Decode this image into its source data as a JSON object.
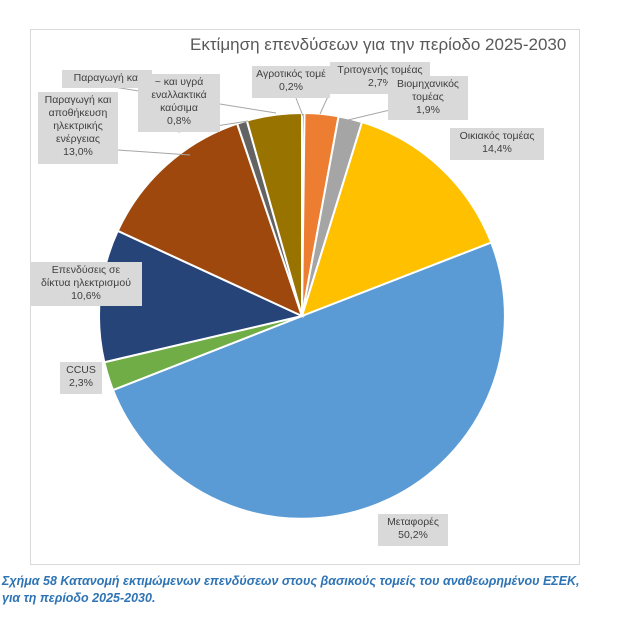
{
  "chart_data": {
    "type": "pie",
    "title": "Εκτίμηση επενδύσεων για την περίοδο 2025-2030",
    "series": [
      {
        "name": "Αγροτικός τομέας",
        "value": 0.2,
        "label": "0,2%",
        "color": "#4472c4"
      },
      {
        "name": "Τριτογενής τομέας",
        "value": 2.7,
        "label": "2,7%",
        "color": "#ed7d31"
      },
      {
        "name": "Βιομηχανικός τομέας",
        "value": 1.9,
        "label": "1,9%",
        "color": "#a5a5a5"
      },
      {
        "name": "Οικιακός τομέας",
        "value": 14.4,
        "label": "14,4%",
        "color": "#ffc000"
      },
      {
        "name": "Μεταφορές",
        "value": 50.2,
        "label": "50,2%",
        "color": "#5b9bd5"
      },
      {
        "name": "CCUS",
        "value": 2.3,
        "label": "2,3%",
        "color": "#70ad47"
      },
      {
        "name": "Επενδύσεις σε δίκτυα ηλεκτρισμού",
        "value": 10.6,
        "label": "10,6%",
        "color": "#264478"
      },
      {
        "name": "Παραγωγή και αποθήκευση ηλεκτρικής ενέργειας",
        "value": 13.0,
        "label": "13,0%",
        "color": "#9e480e"
      },
      {
        "name": "Παραγωγή και ~ και υγρά εναλλακτικά καύσιμα",
        "value": 0.8,
        "label": "0,8%",
        "color": "#636363"
      },
      {
        "name": "",
        "value": 4.4,
        "label": "",
        "color": "#997300"
      }
    ],
    "labels": {
      "agro_name": "Αγροτικός τομέ",
      "tert_name": "Τριτογενής τομέας",
      "ind_name1": "Βιομηχανικός",
      "ind_name2": "τομέας",
      "home_name": "Οικιακός τομέας",
      "trans_name": "Μεταφορές",
      "ccus_name": "CCUS",
      "grid_name1": "Επενδύσεις σε",
      "grid_name2": "δίκτυα ηλεκτρισμού",
      "power_name1": "Παραγωγή και",
      "power_name2": "αποθήκευση",
      "power_name3": "ηλεκτρικής",
      "power_name4": "ενέργειας",
      "fuel_top": "Παραγωγή και",
      "fuel_name1": "~ και υγρά",
      "fuel_name2": "εναλλακτικά",
      "fuel_name3": "καύσιμα"
    }
  },
  "caption": {
    "line1": "Σχήμα 58 Κατανομή εκτιμώμενων επενδύσεων στους βασικούς τομείς του αναθεωρημένου ΕΣΕΚ,",
    "line2": "για τη περίοδο 2025-2030."
  }
}
